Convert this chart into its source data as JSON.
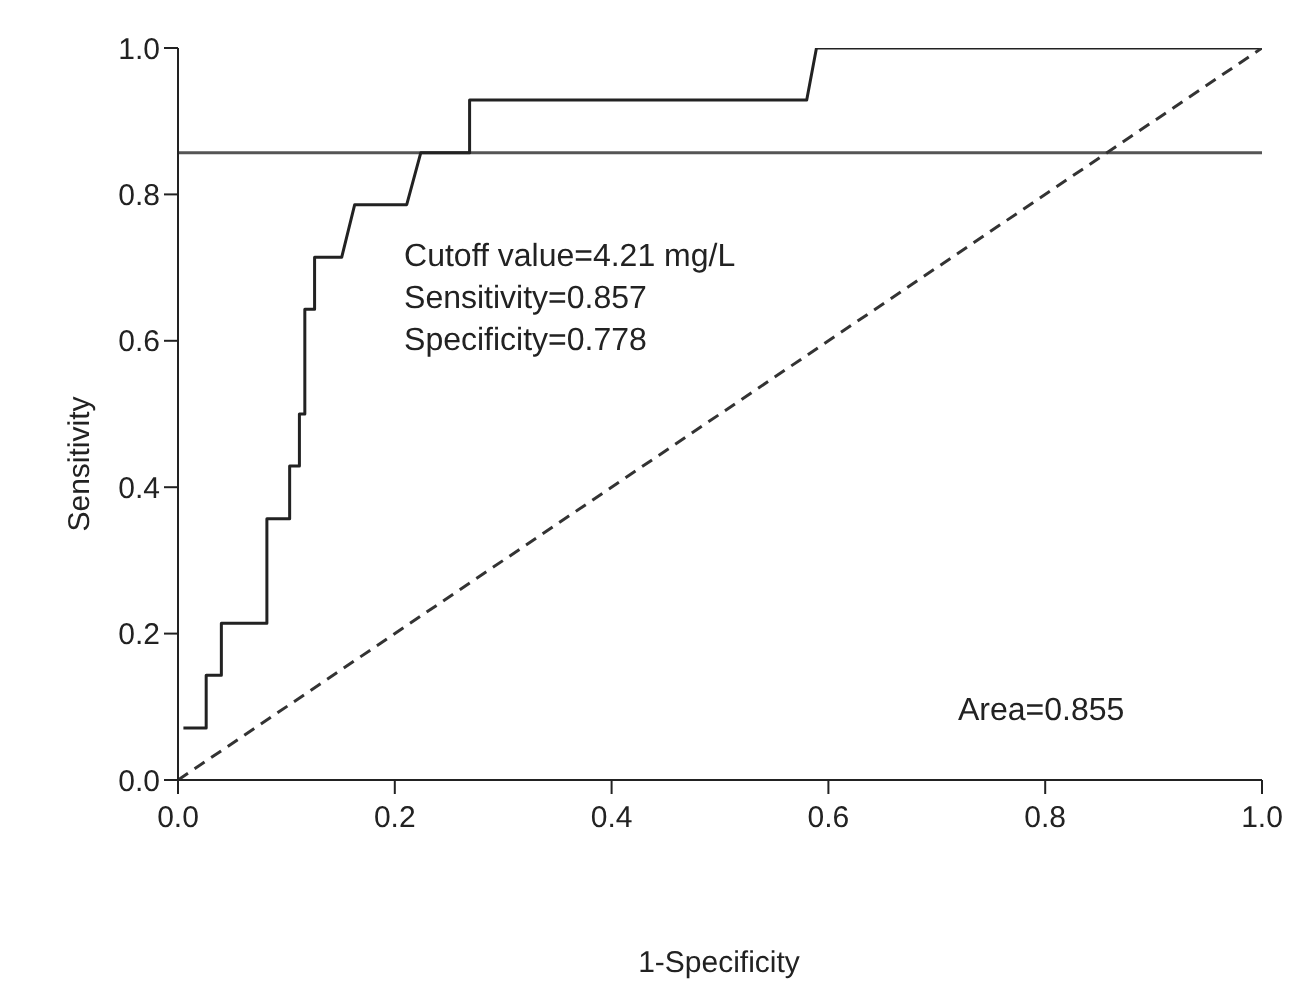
{
  "chart_data": {
    "type": "line",
    "xlabel": "1-Specificity",
    "ylabel": "Sensitivity",
    "xlim": [
      0,
      1
    ],
    "ylim": [
      0,
      1
    ],
    "xticks": [
      {
        "value": 0,
        "label": "0.0"
      },
      {
        "value": 0.2,
        "label": "0.2"
      },
      {
        "value": 0.4,
        "label": "0.4"
      },
      {
        "value": 0.6,
        "label": "0.6"
      },
      {
        "value": 0.8,
        "label": "0.8"
      },
      {
        "value": 1,
        "label": "1.0"
      }
    ],
    "yticks": [
      {
        "value": 0,
        "label": "0.0"
      },
      {
        "value": 0.2,
        "label": "0.2"
      },
      {
        "value": 0.4,
        "label": "0.4"
      },
      {
        "value": 0.6,
        "label": "0.6"
      },
      {
        "value": 0.8,
        "label": "0.8"
      },
      {
        "value": 1,
        "label": "1.0"
      }
    ],
    "grid": false,
    "marker": "none",
    "series": [
      {
        "color": "#222222",
        "line_style": "solid",
        "x": [
          0.005,
          0.026,
          0.026,
          0.04,
          0.04,
          0.082,
          0.082,
          0.103,
          0.103,
          0.112,
          0.112,
          0.117,
          0.117,
          0.126,
          0.126,
          0.151,
          0.163,
          0.211,
          0.224,
          0.269,
          0.269,
          0.58,
          0.589,
          1
        ],
        "values": [
          0.071,
          0.071,
          0.143,
          0.143,
          0.214,
          0.214,
          0.357,
          0.357,
          0.429,
          0.429,
          0.5,
          0.5,
          0.643,
          0.643,
          0.714,
          0.714,
          0.786,
          0.786,
          0.857,
          0.857,
          0.929,
          0.929,
          1,
          1
        ]
      },
      {
        "color": "#333333",
        "line_style": "dashed",
        "x": [
          0,
          1
        ],
        "values": [
          0,
          1
        ]
      }
    ],
    "ref_lines": [
      {
        "axis": "y",
        "value": 0.857,
        "color": "#555555"
      }
    ],
    "annotations": [
      "Cutoff value=4.21 mg/L",
      "Sensitivity=0.857",
      "Specificity=0.778",
      "Area=0.855"
    ]
  }
}
